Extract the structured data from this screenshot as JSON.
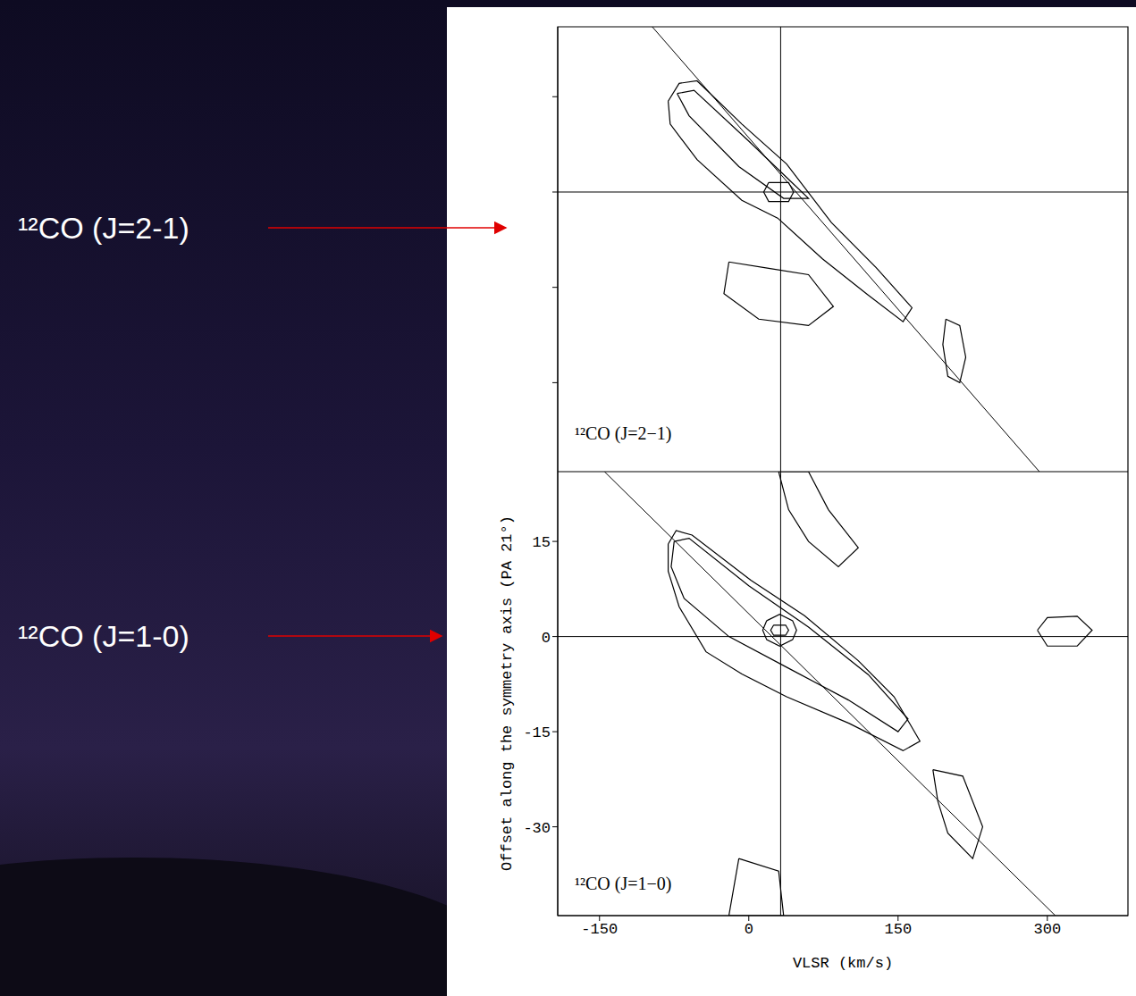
{
  "annotations": [
    "¹²CO (J=2-1)",
    "¹²CO (J=1-0)"
  ],
  "chart_data": [
    {
      "type": "contour",
      "label": "¹²CO (J=2−1)",
      "color": "#000000",
      "xlim": [
        -192,
        381
      ],
      "ylim": [
        -44,
        26
      ],
      "xticks": [
        -150,
        0,
        150,
        300
      ],
      "yticks": [
        -30,
        -15,
        0,
        15
      ],
      "tick_labels": false,
      "reference_lines": {
        "x": 32,
        "y": 0
      },
      "fit_line": {
        "x": [
          -97,
          292
        ],
        "y": [
          26,
          -44
        ]
      },
      "contours": [
        {
          "x": [
            -81,
            -70,
            -52,
            -7,
            38,
            83,
            128,
            164,
            155,
            119,
            74,
            29,
            -7,
            -52,
            -79
          ],
          "y": [
            14.3,
            17.1,
            17.5,
            10.7,
            4.4,
            -4.8,
            -11.9,
            -18.2,
            -20.4,
            -16.1,
            -10.5,
            -4.1,
            -1.3,
            5.1,
            10.7
          ]
        },
        {
          "x": [
            -72,
            -55,
            0,
            40,
            60,
            35,
            -10,
            -60
          ],
          "y": [
            15.5,
            16,
            8,
            2,
            -1,
            -1,
            4,
            12
          ]
        },
        {
          "x": [
            20,
            40,
            45,
            40,
            20,
            15
          ],
          "y": [
            1.5,
            1.5,
            0,
            -1.5,
            -1.5,
            0
          ]
        },
        {
          "x": [
            198,
            212,
            218,
            212,
            200,
            195
          ],
          "y": [
            -20,
            -21,
            -26,
            -30,
            -29,
            -24
          ]
        },
        {
          "x": [
            -20,
            20,
            60,
            85,
            60,
            10,
            -25
          ],
          "y": [
            -11,
            -12,
            -13,
            -18,
            -21,
            -20,
            -16
          ]
        }
      ]
    },
    {
      "type": "contour",
      "label": "¹²CO (J=1−0)",
      "color": "#000000",
      "x_label": "VLSR (km/s)",
      "y_label": "Offset along the symmetry axis (PA 21°)",
      "xlim": [
        -192,
        381
      ],
      "ylim": [
        -44,
        26
      ],
      "xticks": [
        -150,
        0,
        150,
        300
      ],
      "yticks": [
        -30,
        -15,
        0,
        15
      ],
      "reference_lines": {
        "x": 32,
        "y": 0
      },
      "fit_line": {
        "x": [
          -145,
          308
        ],
        "y": [
          26,
          -44
        ]
      },
      "contours": [
        {
          "x": [
            -81,
            -73,
            -57,
            2,
            56,
            110,
            146,
            172,
            155,
            101,
            38,
            -7,
            -43,
            -70,
            -81
          ],
          "y": [
            14.6,
            16.7,
            16,
            8.9,
            3.3,
            -3.8,
            -9.5,
            -16.5,
            -18,
            -13.7,
            -9.5,
            -5.9,
            -2.4,
            4.7,
            10.3
          ]
        },
        {
          "x": [
            -75,
            -60,
            0,
            60,
            120,
            160,
            150,
            100,
            40,
            -20,
            -65,
            -78
          ],
          "y": [
            15,
            15.5,
            8,
            1.5,
            -6,
            -13,
            -15,
            -10,
            -5,
            0,
            6,
            11
          ]
        },
        {
          "x": [
            18,
            31,
            44,
            48,
            44,
            31,
            18,
            14
          ],
          "y": [
            2.5,
            3.5,
            2.5,
            1,
            -0.5,
            -1.5,
            -0.5,
            1
          ]
        },
        {
          "x": [
            25,
            37,
            40,
            37,
            25,
            22
          ],
          "y": [
            1.8,
            1.8,
            1,
            0.2,
            0.2,
            1
          ]
        },
        {
          "x": [
            185,
            215,
            235,
            225,
            200,
            190
          ],
          "y": [
            -21,
            -22,
            -30,
            -35,
            -31,
            -26
          ]
        },
        {
          "x": [
            290,
            300,
            330,
            345,
            330,
            300
          ],
          "y": [
            1,
            3,
            3.2,
            1,
            -1.5,
            -1.5
          ]
        },
        {
          "x": [
            30,
            60,
            80,
            110,
            90,
            60,
            40
          ],
          "y": [
            26,
            26,
            20,
            14,
            11,
            15,
            20
          ]
        },
        {
          "x": [
            -10,
            30,
            35,
            -20
          ],
          "y": [
            -35,
            -37,
            -44,
            -44
          ]
        }
      ]
    }
  ]
}
